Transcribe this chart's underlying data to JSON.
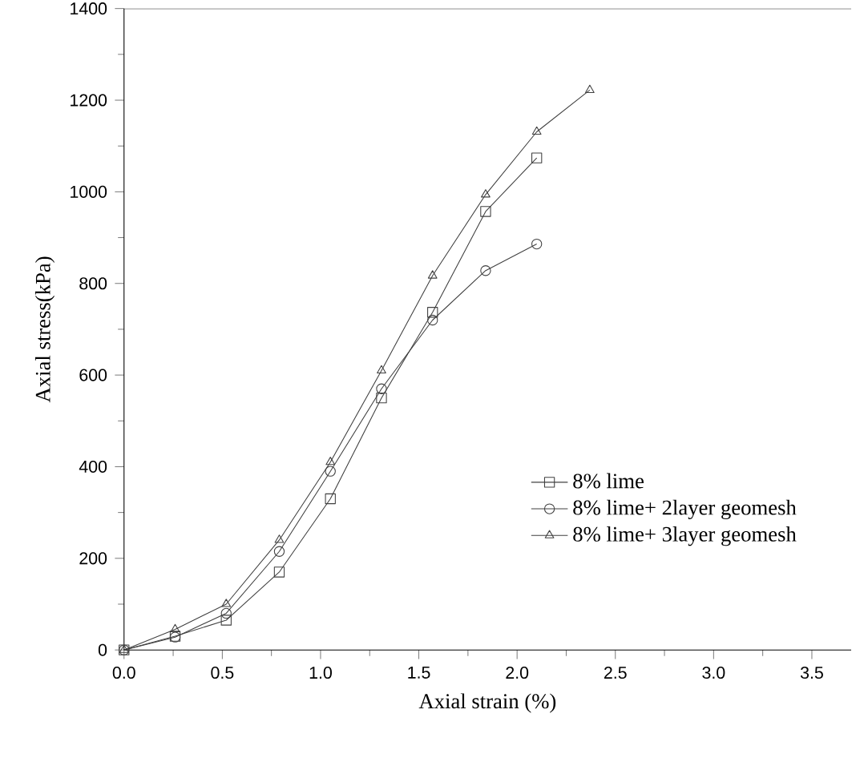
{
  "chart_data": {
    "type": "line",
    "xlabel": "Axial strain (%)",
    "ylabel": "Axial stress(kPa)",
    "xlim": [
      0,
      3.7
    ],
    "xticks": [
      {
        "value": 0,
        "label": "0.0"
      },
      0.5,
      {
        "value": 1,
        "label": "1.0"
      },
      1.5,
      {
        "value": 2,
        "label": "2.0"
      },
      2.5,
      {
        "value": 3,
        "label": "3.0"
      },
      3.5
    ],
    "ylim": [
      0,
      1400
    ],
    "yticks": [
      0,
      200,
      400,
      600,
      800,
      1000,
      1200,
      1400
    ],
    "grid": false,
    "legend": "right",
    "line_style": "solid",
    "x": [
      0,
      0.26,
      0.52,
      0.79,
      1.05,
      1.31,
      1.57,
      1.84,
      2.1,
      2.37
    ],
    "series": [
      {
        "name": "8% lime",
        "color": "#404040",
        "marker": "square",
        "values": [
          0,
          30,
          65,
          170,
          330,
          550,
          737,
          957,
          1074,
          null
        ]
      },
      {
        "name": "8% lime+  2layer  geomesh",
        "color": "#404040",
        "marker": "circle",
        "values": [
          0,
          28,
          80,
          215,
          390,
          570,
          720,
          828,
          886,
          null
        ]
      },
      {
        "name": "8% lime+  3layer  geomesh",
        "color": "#404040",
        "marker": "triangle",
        "values": [
          0,
          45,
          100,
          240,
          410,
          610,
          817,
          994,
          1131,
          1222
        ]
      }
    ]
  }
}
